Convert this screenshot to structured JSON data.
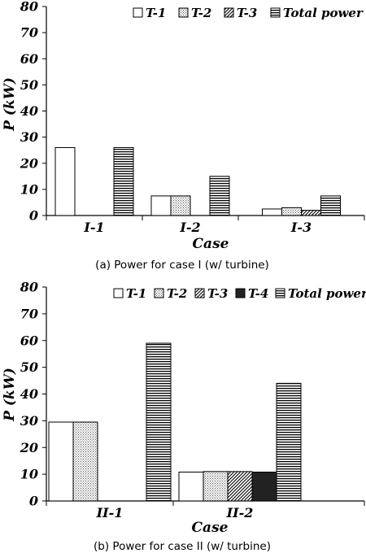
{
  "chart_data": [
    {
      "type": "bar",
      "caption": "(a)  Power for case I (w/ turbine)",
      "xlabel": "Case",
      "ylabel": "P (kW)",
      "ylim": [
        0,
        80
      ],
      "yticks": [
        "0",
        "10",
        "20",
        "30",
        "40",
        "50",
        "60",
        "70",
        "80"
      ],
      "categories": [
        "I-1",
        "I-2",
        "I-3"
      ],
      "legend_position": "top-right",
      "series": [
        {
          "name": "T-1",
          "pattern": "white",
          "values": [
            26,
            7.5,
            2.5
          ]
        },
        {
          "name": "T-2",
          "pattern": "dots",
          "values": [
            0,
            7.5,
            3
          ]
        },
        {
          "name": "T-3",
          "pattern": "diag",
          "values": [
            0,
            0,
            2
          ]
        },
        {
          "name": "Total power",
          "pattern": "hlines",
          "values": [
            26,
            15,
            7.5
          ]
        }
      ]
    },
    {
      "type": "bar",
      "caption": "(b)  Power for case II (w/ turbine)",
      "xlabel": "Case",
      "ylabel": "P (kW)",
      "ylim": [
        0,
        80
      ],
      "yticks": [
        "0",
        "10",
        "20",
        "30",
        "40",
        "50",
        "60",
        "70",
        "80"
      ],
      "categories": [
        "II-1",
        "II-2"
      ],
      "legend_position": "top-right",
      "series": [
        {
          "name": "T-1",
          "pattern": "white",
          "values": [
            29.5,
            10.8
          ]
        },
        {
          "name": "T-2",
          "pattern": "dots",
          "values": [
            29.5,
            11
          ]
        },
        {
          "name": "T-3",
          "pattern": "diag",
          "values": [
            0,
            11
          ]
        },
        {
          "name": "T-4",
          "pattern": "black",
          "values": [
            0,
            10.8
          ]
        },
        {
          "name": "Total power",
          "pattern": "hlines",
          "values": [
            59,
            44
          ]
        }
      ]
    }
  ]
}
